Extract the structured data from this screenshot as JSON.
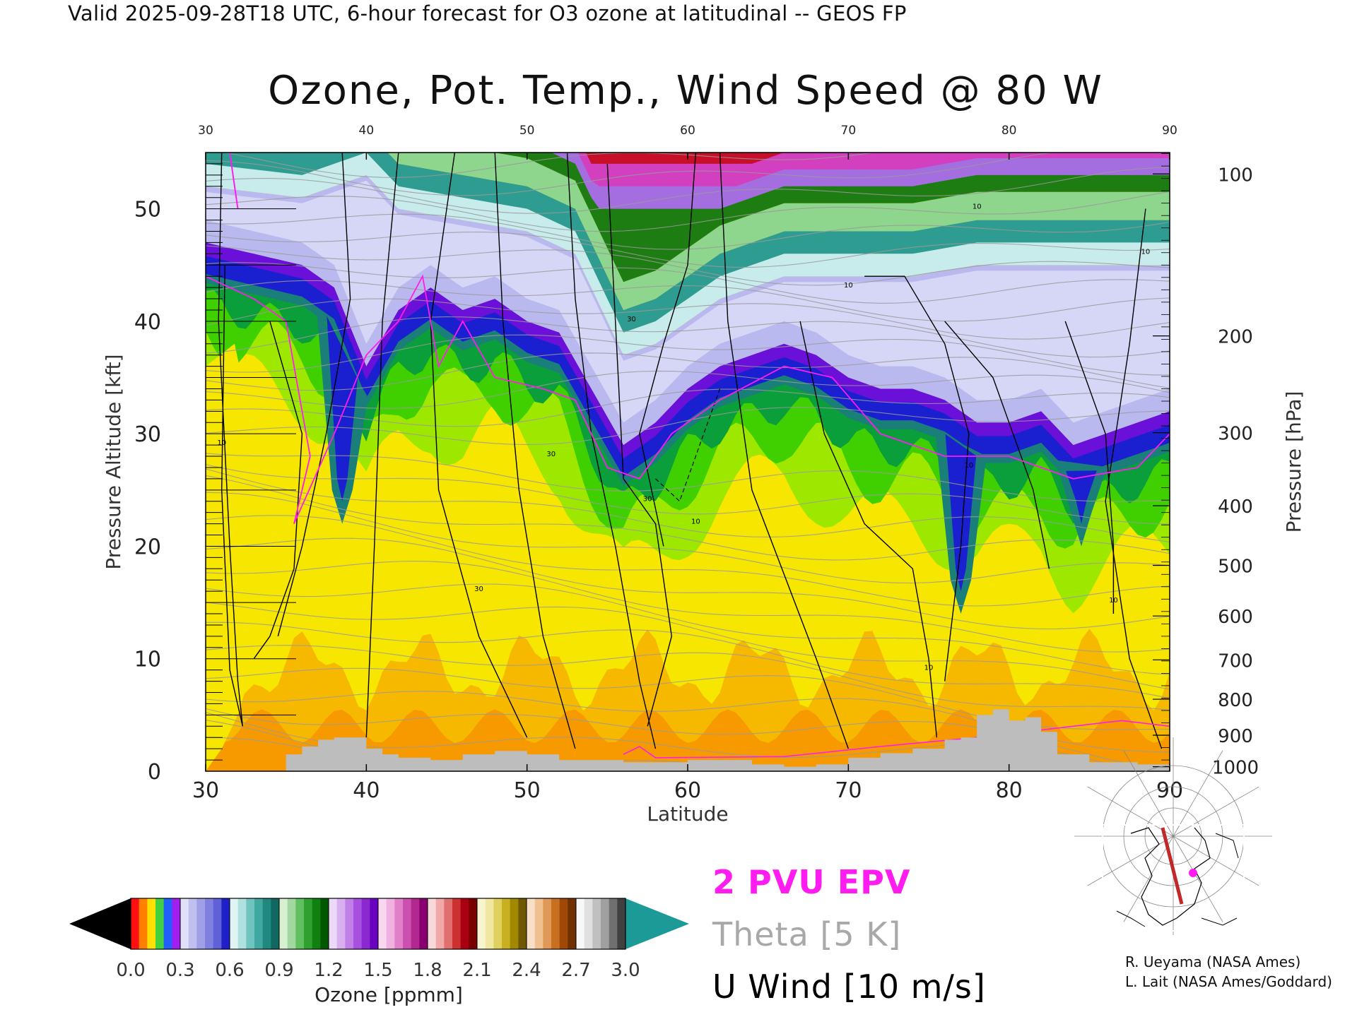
{
  "header": {
    "valid_line": "Valid 2025-09-28T18 UTC, 6-hour forecast for O3 ozone at latitudinal -- GEOS FP",
    "title": "Ozone, Pot. Temp., Wind Speed @ 80 W"
  },
  "chart_data": {
    "type": "heatmap",
    "title": "Ozone, Pot. Temp., Wind Speed @ 80 W",
    "xlabel": "Latitude",
    "ylabel_left": "Pressure Altitude [kft]",
    "ylabel_right": "Pressure [hPa]",
    "xlim": [
      30,
      90
    ],
    "ylim": [
      0,
      55
    ],
    "x_ticks": [
      30,
      40,
      50,
      60,
      70,
      80,
      90
    ],
    "x_ticks_top": [
      30,
      40,
      50,
      60,
      70,
      80,
      90
    ],
    "y_ticks_left": [
      0,
      10,
      20,
      30,
      40,
      50
    ],
    "y_ticks_right": [
      {
        "label": "100",
        "kft": 53.1
      },
      {
        "label": "200",
        "kft": 38.7
      },
      {
        "label": "300",
        "kft": 30.1
      },
      {
        "label": "400",
        "kft": 23.6
      },
      {
        "label": "500",
        "kft": 18.3
      },
      {
        "label": "600",
        "kft": 13.8
      },
      {
        "label": "700",
        "kft": 9.9
      },
      {
        "label": "800",
        "kft": 6.4
      },
      {
        "label": "900",
        "kft": 3.2
      },
      {
        "label": "1000",
        "kft": 0.4
      }
    ],
    "tropopause_kft": [
      [
        30,
        44
      ],
      [
        33,
        43
      ],
      [
        36,
        42
      ],
      [
        38,
        40
      ],
      [
        40,
        33
      ],
      [
        42,
        38
      ],
      [
        44,
        40
      ],
      [
        46,
        38
      ],
      [
        48,
        39
      ],
      [
        50,
        37
      ],
      [
        52,
        36
      ],
      [
        54,
        31
      ],
      [
        56,
        26
      ],
      [
        58,
        28
      ],
      [
        60,
        31
      ],
      [
        62,
        33
      ],
      [
        64,
        34
      ],
      [
        66,
        35
      ],
      [
        68,
        34
      ],
      [
        70,
        32
      ],
      [
        72,
        31
      ],
      [
        74,
        31
      ],
      [
        76,
        30
      ],
      [
        78,
        28
      ],
      [
        80,
        28
      ],
      [
        82,
        29
      ],
      [
        84,
        26
      ],
      [
        86,
        27
      ],
      [
        88,
        28
      ],
      [
        90,
        29
      ]
    ],
    "upper_band_kft": [
      [
        30,
        52
      ],
      [
        36,
        51
      ],
      [
        40,
        53
      ],
      [
        42,
        50
      ],
      [
        46,
        49
      ],
      [
        50,
        48
      ],
      [
        53,
        46
      ],
      [
        55,
        40
      ],
      [
        56,
        37
      ],
      [
        58,
        38
      ],
      [
        60,
        40
      ],
      [
        62,
        42
      ],
      [
        66,
        44
      ],
      [
        70,
        44
      ],
      [
        74,
        44
      ],
      [
        78,
        45
      ],
      [
        82,
        45
      ],
      [
        86,
        45
      ],
      [
        90,
        45
      ]
    ],
    "stratospheric_tongues": [
      {
        "lat": 38.5,
        "bottom_kft": 22
      },
      {
        "lat": 77,
        "bottom_kft": 14
      },
      {
        "lat": 84.5,
        "bottom_kft": 20
      }
    ],
    "terrain_kft": [
      [
        30,
        0
      ],
      [
        34,
        0
      ],
      [
        35,
        1.5
      ],
      [
        36,
        2.2
      ],
      [
        37,
        2.8
      ],
      [
        38,
        3
      ],
      [
        39,
        3
      ],
      [
        40,
        2
      ],
      [
        41,
        1.5
      ],
      [
        42,
        1.2
      ],
      [
        44,
        1
      ],
      [
        46,
        1.5
      ],
      [
        48,
        1.8
      ],
      [
        50,
        1.5
      ],
      [
        52,
        1
      ],
      [
        54,
        1
      ],
      [
        56,
        0.8
      ],
      [
        58,
        0.8
      ],
      [
        60,
        1
      ],
      [
        62,
        1
      ],
      [
        64,
        0.6
      ],
      [
        66,
        0.4
      ],
      [
        68,
        0.6
      ],
      [
        70,
        1.2
      ],
      [
        72,
        1.6
      ],
      [
        74,
        2
      ],
      [
        76,
        2.8
      ],
      [
        77,
        3
      ],
      [
        78,
        5
      ],
      [
        79,
        5.5
      ],
      [
        80,
        4.5
      ],
      [
        81,
        4.8
      ],
      [
        82,
        3.5
      ],
      [
        83,
        1.5
      ],
      [
        85,
        0.8
      ],
      [
        88,
        0.6
      ],
      [
        90,
        0.5
      ]
    ],
    "jet_core": {
      "lat": 56,
      "kft": 32,
      "label": "30"
    },
    "contour_labels": [
      {
        "lat": 31,
        "kft": 29,
        "text": "10"
      },
      {
        "lat": 51.5,
        "kft": 28,
        "text": "30"
      },
      {
        "lat": 56.5,
        "kft": 40,
        "text": "30"
      },
      {
        "lat": 57.5,
        "kft": 24,
        "text": "30"
      },
      {
        "lat": 47,
        "kft": 16,
        "text": "30"
      },
      {
        "lat": 60.5,
        "kft": 55,
        "text": "10"
      },
      {
        "lat": 60.5,
        "kft": 22,
        "text": "10"
      },
      {
        "lat": 70,
        "kft": 43,
        "text": "10"
      },
      {
        "lat": 78,
        "kft": 50,
        "text": "10"
      },
      {
        "lat": 75,
        "kft": 9,
        "text": "10"
      },
      {
        "lat": 77.5,
        "kft": 27,
        "text": "10"
      },
      {
        "lat": 86.5,
        "kft": 15,
        "text": "10"
      },
      {
        "lat": 88.5,
        "kft": 46,
        "text": "10"
      }
    ]
  },
  "colorbar": {
    "title": "Ozone [ppmm]",
    "ticks": [
      "0.0",
      "0.3",
      "0.6",
      "0.9",
      "1.2",
      "1.5",
      "1.8",
      "2.1",
      "2.4",
      "2.7",
      "3.0"
    ],
    "left_arrow_color": "#000000",
    "right_arrow_color": "#1b9a97"
  },
  "legend": {
    "epv": "2 PVU EPV",
    "theta": "Theta [5 K]",
    "uwind": "U Wind [10 m/s]",
    "epv_color": "#ff1cf0",
    "theta_color": "#a8a8a8"
  },
  "credits": {
    "line1": "R. Ueyama (NASA Ames)",
    "line2": "L. Lait (NASA Ames/Goddard)"
  },
  "inset_map": {
    "section_color": "#c0282a",
    "marker_color": "#ff1cf0"
  }
}
